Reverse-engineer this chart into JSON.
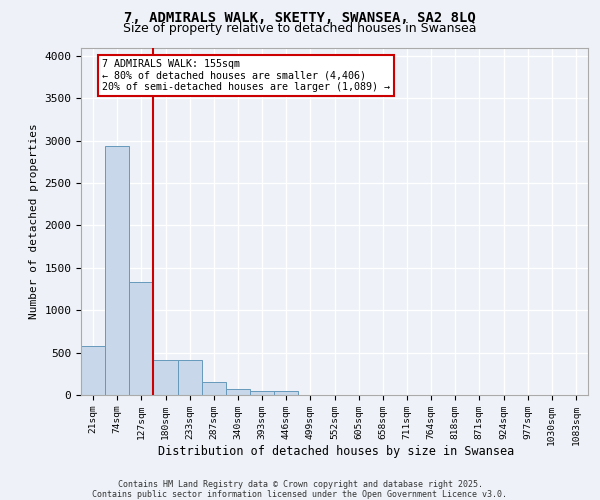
{
  "title_line1": "7, ADMIRALS WALK, SKETTY, SWANSEA, SA2 8LQ",
  "title_line2": "Size of property relative to detached houses in Swansea",
  "xlabel": "Distribution of detached houses by size in Swansea",
  "ylabel": "Number of detached properties",
  "footer_line1": "Contains HM Land Registry data © Crown copyright and database right 2025.",
  "footer_line2": "Contains public sector information licensed under the Open Government Licence v3.0.",
  "annotation_line1": "7 ADMIRALS WALK: 155sqm",
  "annotation_line2": "← 80% of detached houses are smaller (4,406)",
  "annotation_line3": "20% of semi-detached houses are larger (1,089) →",
  "bar_values": [
    580,
    2940,
    1330,
    415,
    415,
    155,
    75,
    50,
    50,
    0,
    0,
    0,
    0,
    0,
    0,
    0,
    0,
    0,
    0,
    0,
    0
  ],
  "bin_labels": [
    "21sqm",
    "74sqm",
    "127sqm",
    "180sqm",
    "233sqm",
    "287sqm",
    "340sqm",
    "393sqm",
    "446sqm",
    "499sqm",
    "552sqm",
    "605sqm",
    "658sqm",
    "711sqm",
    "764sqm",
    "818sqm",
    "871sqm",
    "924sqm",
    "977sqm",
    "1030sqm",
    "1083sqm"
  ],
  "bar_color": "#c8d8ea",
  "bar_edge_color": "#6699bb",
  "bg_color": "#eef2f8",
  "grid_color": "#ffffff",
  "vline_color": "#cc0000",
  "vline_x": 2.5,
  "ylim": [
    0,
    4100
  ],
  "yticks": [
    0,
    500,
    1000,
    1500,
    2000,
    2500,
    3000,
    3500,
    4000
  ]
}
